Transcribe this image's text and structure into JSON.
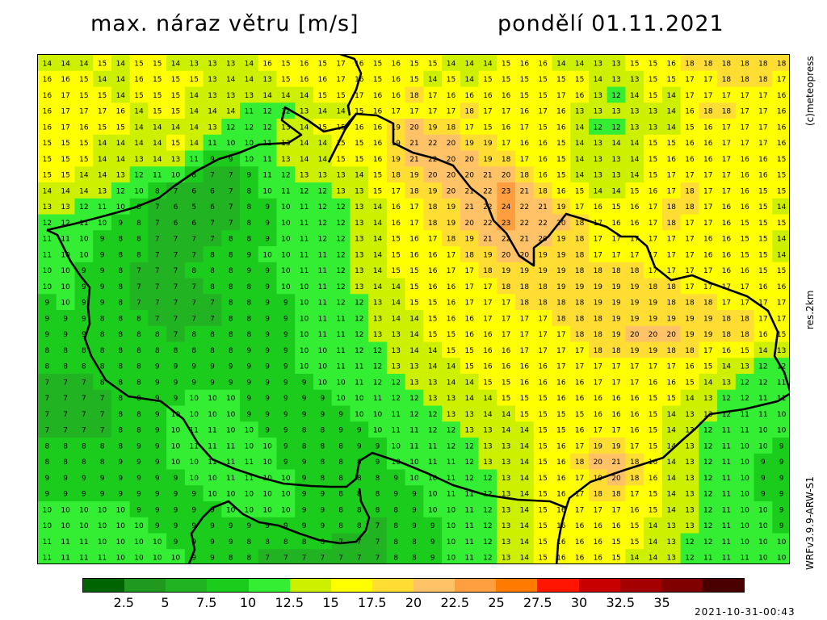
{
  "header": {
    "title": "max. náraz větru [m/s]",
    "date": "pondělí 01.11.2021"
  },
  "side_labels": {
    "copyright": "(c)meteopress",
    "resolution": "res.2km",
    "model": "WRFv3.9.9-ARW-S1"
  },
  "footer": {
    "timestamp": "2021-10-31-00:43"
  },
  "colorbar": {
    "colors": [
      "#006400",
      "#1f9a1f",
      "#22b322",
      "#1ccc1c",
      "#33ee33",
      "#ccf000",
      "#ffff00",
      "#ffdd33",
      "#ffc266",
      "#ff9f40",
      "#ff7b00",
      "#ff1500",
      "#c80000",
      "#a40000",
      "#800000",
      "#4a0000"
    ],
    "tick_labels": [
      "2.5",
      "5",
      "7.5",
      "10",
      "12.5",
      "15",
      "17.5",
      "20",
      "22.5",
      "25",
      "27.5",
      "30",
      "32.5",
      "35"
    ],
    "tick_values": [
      2.5,
      5,
      7.5,
      10,
      12.5,
      15,
      17.5,
      20,
      22.5,
      25,
      27.5,
      30,
      32.5,
      35
    ]
  },
  "map": {
    "units": "m/s",
    "value_grid": [
      "14 14 14 15 14 15 15 14 13 13 13 14 16 15 16 15 17 16 15 16 15 15 14 14 14 15 16 16 14 14 13 13 15 15 16 18 18 18 18 18 18",
      "16 16 15 14 14 16 15 15 15 13 14 14 13 15 16 16 17 16 15 16 15 14 15 14 15 15 15 15 15 15 14 13 13 15 15 17 17 18 18 18 17",
      "16 17 15 15 14 15 15 15 14 13 13 13 14 14 14 15 15 17 16 16 18 17 16 16 16 16 15 15 17 16 13 12 14 15 14 17 17 17 17 17 16",
      "16 17 17 17 16 14 15 15 14 14 14 11 12 12 13 14 14 15 16 17 17 17 17 18 17 17 16 17 16 13 13 13 13 13 14 16 18 18 17 17 16",
      "16 17 16 15 15 14 14 14 14 13 12 12 12 13 14 15 15 16 16 19 20 19 18 17 15 16 17 15 16 14 12 12 13 13 14 15 16 17 17 17 16",
      "15 15 15 14 14 14 14 15 14 11 10 10 11 13 14 14 15 15 16 19 21 22 20 19 19 17 16 16 15 14 13 14 14 15 15 16 16 17 17 17 16",
      "15 15 15 14 14 13 14 13 11 9 9 10 11 13 14 14 15 15 16 19 21 22 20 20 19 18 17 16 15 14 13 13 14 15 16 16 16 17 16 16 15",
      "15 15 14 14 13 12 11 10 8 7 7 9 11 12 13 13 13 14 15 18 19 20 20 20 21 20 18 16 15 14 13 13 14 15 17 17 17 17 16 16 15",
      "14 14 14 13 12 10 8 7 6 6 7 8 10 11 12 12 13 13 15 17 18 19 20 21 22 23 21 18 16 15 14 14 15 16 17 18 17 17 16 15 15",
      "13 13 12 11 10 8 7 6 5 6 7 8 9 10 11 12 12 13 14 16 17 18 19 21 22 24 22 21 19 17 16 15 16 17 18 18 17 16 16 15 14",
      "12 12 11 10 9 8 7 6 6 7 7 8 9 10 11 12 12 13 14 16 17 18 19 20 22 23 22 22 20 18 17 16 16 17 18 17 17 16 15 15 15",
      "11 11 10 9 8 8 7 7 7 7 8 8 9 10 11 12 12 13 14 15 16 17 18 19 21 22 21 20 19 18 17 17 17 17 17 17 16 16 15 15 14",
      "11 10 10 9 8 8 7 7 7 8 8 9 10 10 11 11 12 13 14 15 16 16 17 18 19 20 20 19 19 18 17 17 17 17 17 17 16 16 15 15 14",
      "10 10 9 9 8 7 7 7 8 8 8 9 9 10 11 11 12 13 14 15 15 16 17 17 18 19 19 19 19 18 18 18 18 17 17 17 17 16 16 15 15",
      "10 10 9 9 8 7 7 7 7 8 8 8 9 10 10 11 12 13 14 14 15 16 16 17 17 18 18 18 19 19 19 19 19 18 18 17 17 17 17 16 16",
      "9 10 9 9 8 7 7 7 7 7 8 8 9 9 10 11 12 12 13 14 15 15 16 17 17 17 18 18 18 18 19 19 19 19 18 18 18 17 17 17 17",
      "9 9 9 8 8 8 7 7 7 7 8 8 9 9 10 11 11 12 13 14 14 15 16 16 17 17 17 17 18 18 18 19 19 19 19 19 19 18 18 17 17",
      "9 9 9 8 8 8 8 7 8 8 8 8 9 9 10 11 11 12 13 13 14 15 15 16 16 17 17 17 17 18 18 19 20 20 20 19 19 18 18 16 15",
      "8 8 8 8 8 8 8 8 8 8 8 9 9 9 10 10 11 12 12 13 14 14 15 15 16 16 17 17 17 17 18 18 19 19 18 18 17 16 15 14 13",
      "8 8 8 8 8 8 9 9 9 9 9 9 9 9 10 10 11 11 12 13 13 14 14 15 16 16 16 16 17 17 17 17 17 17 17 16 15 14 13 12 12",
      "7 7 7 8 8 8 9 9 9 9 9 9 9 9 9 10 10 11 12 12 13 13 14 14 15 15 16 16 16 16 17 17 17 16 16 15 14 13 12 12 11",
      "7 7 7 7 8 8 9 9 10 10 10 9 9 9 9 9 10 10 11 12 12 13 13 14 14 15 15 15 16 16 16 16 16 15 15 14 13 12 12 11 11",
      "7 7 7 7 8 8 9 10 10 10 10 9 9 9 9 9 9 10 10 11 12 12 13 13 14 14 15 15 15 15 16 16 16 15 14 13 13 12 11 11 10",
      "7 7 7 7 8 8 9 10 11 11 10 10 9 9 8 8 9 9 10 11 11 12 12 13 13 14 14 15 15 16 17 17 16 15 14 13 12 11 11 10 10",
      "8 8 8 8 8 9 9 10 11 11 11 10 10 9 8 8 8 9 9 10 11 11 12 12 13 13 14 15 16 17 19 19 17 15 14 13 12 11 10 10 9",
      "8 8 8 8 9 9 9 10 10 11 11 11 10 9 9 8 8 8 9 10 10 11 11 12 13 13 14 15 16 18 20 21 18 16 14 13 12 11 10 9 9",
      "9 9 9 9 9 9 9 9 10 10 11 11 10 10 9 8 8 8 8 9 10 10 11 12 12 13 14 15 16 17 19 20 18 16 14 13 12 11 10 9 9",
      "9 9 9 9 9 9 9 9 9 10 10 10 10 10 9 9 8 8 8 9 9 10 11 11 12 13 14 15 16 17 18 18 17 15 14 13 12 11 10 9 9",
      "10 10 10 10 10 9 9 9 9 9 10 10 10 10 9 9 8 8 8 8 9 10 10 11 12 13 14 15 16 17 17 17 16 15 14 13 12 11 10 10 9",
      "10 10 10 10 10 10 9 9 9 9 9 9 9 9 9 9 8 8 7 8 9 9 10 11 12 13 14 15 16 16 16 16 15 14 13 13 12 11 10 10 9",
      "11 11 11 10 10 10 10 9 9 9 9 8 8 8 8 8 7 7 7 8 8 9 10 11 12 13 14 15 16 16 16 15 15 14 13 12 12 11 10 10 10",
      "11 11 11 11 10 10 10 10 9 9 8 8 7 7 7 7 7 7 7 8 8 9 10 11 12 13 14 15 16 16 16 15 14 14 13 12 11 11 11 10 10"
    ],
    "border_points": [
      [
        57,
        284
      ],
      [
        70,
        290
      ],
      [
        78,
        306
      ],
      [
        86,
        322
      ],
      [
        98,
        340
      ],
      [
        110,
        355
      ],
      [
        108,
        380
      ],
      [
        110,
        400
      ],
      [
        104,
        418
      ],
      [
        112,
        440
      ],
      [
        130,
        470
      ],
      [
        158,
        490
      ],
      [
        198,
        496
      ],
      [
        226,
        518
      ],
      [
        244,
        548
      ],
      [
        262,
        568
      ],
      [
        290,
        580
      ],
      [
        320,
        590
      ],
      [
        350,
        598
      ],
      [
        384,
        601
      ],
      [
        408,
        602
      ],
      [
        428,
        602
      ],
      [
        440,
        592
      ],
      [
        444,
        570
      ],
      [
        460,
        560
      ],
      [
        496,
        572
      ],
      [
        530,
        586
      ],
      [
        560,
        600
      ],
      [
        600,
        612
      ],
      [
        640,
        618
      ],
      [
        680,
        620
      ],
      [
        700,
        628
      ],
      [
        704,
        616
      ],
      [
        730,
        596
      ],
      [
        770,
        582
      ],
      [
        820,
        566
      ],
      [
        844,
        544
      ],
      [
        860,
        530
      ],
      [
        878,
        512
      ],
      [
        920,
        506
      ],
      [
        962,
        496
      ],
      [
        978,
        486
      ],
      [
        970,
        460
      ],
      [
        958,
        440
      ],
      [
        962,
        410
      ],
      [
        950,
        384
      ],
      [
        924,
        366
      ],
      [
        880,
        350
      ],
      [
        856,
        340
      ],
      [
        830,
        346
      ],
      [
        810,
        330
      ],
      [
        800,
        304
      ],
      [
        786,
        292
      ],
      [
        768,
        292
      ],
      [
        750,
        280
      ],
      [
        720,
        270
      ],
      [
        700,
        264
      ],
      [
        678,
        292
      ],
      [
        660,
        306
      ],
      [
        660,
        328
      ],
      [
        642,
        316
      ],
      [
        626,
        288
      ],
      [
        610,
        272
      ],
      [
        600,
        246
      ],
      [
        582,
        232
      ],
      [
        560,
        204
      ],
      [
        540,
        196
      ],
      [
        510,
        188
      ],
      [
        486,
        176
      ],
      [
        486,
        152
      ],
      [
        466,
        142
      ],
      [
        440,
        140
      ],
      [
        426,
        156
      ],
      [
        400,
        162
      ],
      [
        380,
        148
      ],
      [
        352,
        132
      ],
      [
        348,
        148
      ],
      [
        372,
        166
      ],
      [
        356,
        176
      ],
      [
        320,
        178
      ],
      [
        296,
        188
      ],
      [
        270,
        196
      ],
      [
        240,
        212
      ],
      [
        214,
        230
      ],
      [
        196,
        244
      ],
      [
        166,
        256
      ],
      [
        130,
        266
      ],
      [
        92,
        276
      ],
      [
        57,
        284
      ]
    ],
    "coast_points": [
      [
        420,
        66
      ],
      [
        438,
        72
      ],
      [
        446,
        90
      ],
      [
        440,
        110
      ],
      [
        430,
        130
      ],
      [
        432,
        142
      ]
    ],
    "inner_line_points": [
      [
        440,
        140
      ],
      [
        426,
        160
      ],
      [
        416,
        180
      ],
      [
        406,
        200
      ]
    ],
    "lower_border_points": [
      [
        232,
        700
      ],
      [
        240,
        680
      ],
      [
        236,
        660
      ],
      [
        250,
        640
      ],
      [
        262,
        628
      ],
      [
        282,
        620
      ],
      [
        300,
        636
      ],
      [
        320,
        646
      ],
      [
        344,
        650
      ],
      [
        370,
        660
      ],
      [
        394,
        668
      ],
      [
        420,
        672
      ],
      [
        440,
        670
      ],
      [
        452,
        656
      ],
      [
        456,
        640
      ],
      [
        446,
        620
      ],
      [
        444,
        604
      ]
    ],
    "lower_border2_points": [
      [
        700,
        628
      ],
      [
        694,
        650
      ],
      [
        690,
        672
      ],
      [
        688,
        700
      ]
    ]
  }
}
